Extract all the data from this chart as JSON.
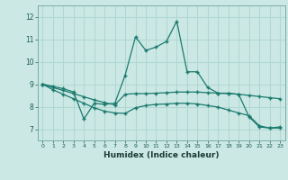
{
  "xlabel": "Humidex (Indice chaleur)",
  "bg_color": "#cce8e4",
  "grid_color": "#b0d8d2",
  "line_color": "#1a7a6e",
  "xlim": [
    -0.5,
    23.5
  ],
  "ylim": [
    6.5,
    12.5
  ],
  "yticks": [
    7,
    8,
    9,
    10,
    11,
    12
  ],
  "xticks": [
    0,
    1,
    2,
    3,
    4,
    5,
    6,
    7,
    8,
    9,
    10,
    11,
    12,
    13,
    14,
    15,
    16,
    17,
    18,
    19,
    20,
    21,
    22,
    23
  ],
  "series1_x": [
    0,
    1,
    2,
    3,
    4,
    5,
    6,
    7,
    8,
    9,
    10,
    11,
    12,
    13,
    14,
    15,
    16,
    17,
    18,
    19,
    20,
    21,
    22,
    23
  ],
  "series1_y": [
    9.0,
    8.9,
    8.8,
    8.65,
    7.45,
    8.15,
    8.1,
    8.15,
    9.4,
    11.1,
    10.5,
    10.65,
    10.9,
    11.8,
    9.55,
    9.55,
    8.85,
    8.6,
    8.6,
    8.55,
    7.55,
    7.1,
    7.05,
    7.1
  ],
  "series2_x": [
    0,
    1,
    2,
    3,
    4,
    5,
    6,
    7,
    8,
    9,
    10,
    11,
    12,
    13,
    14,
    15,
    16,
    17,
    18,
    19,
    20,
    21,
    22,
    23
  ],
  "series2_y": [
    9.0,
    8.85,
    8.72,
    8.58,
    8.44,
    8.3,
    8.18,
    8.08,
    8.55,
    8.58,
    8.58,
    8.6,
    8.62,
    8.65,
    8.65,
    8.65,
    8.62,
    8.6,
    8.58,
    8.55,
    8.5,
    8.45,
    8.4,
    8.35
  ],
  "series3_x": [
    0,
    1,
    2,
    3,
    4,
    5,
    6,
    7,
    8,
    9,
    10,
    11,
    12,
    13,
    14,
    15,
    16,
    17,
    18,
    19,
    20,
    21,
    22,
    23
  ],
  "series3_y": [
    9.0,
    8.75,
    8.55,
    8.35,
    8.15,
    7.95,
    7.8,
    7.72,
    7.7,
    7.95,
    8.05,
    8.1,
    8.12,
    8.15,
    8.15,
    8.12,
    8.05,
    7.98,
    7.85,
    7.72,
    7.6,
    7.15,
    7.05,
    7.05
  ]
}
